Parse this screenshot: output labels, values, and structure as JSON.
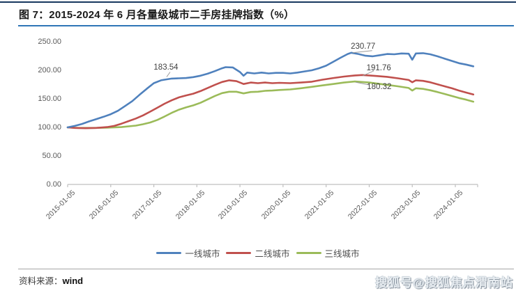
{
  "figure": {
    "title": "图 7：2015-2024 年 6 月各量级城市二手房挂牌指数（%）",
    "source_label": "资料来源：",
    "source_value": "wind",
    "watermark": "搜狐号@搜狐焦点渭南站"
  },
  "colors": {
    "top_rule": "#17375e",
    "title_rule": "#2e75b6",
    "axis": "#bfbfbf",
    "tick_text": "#595959",
    "data_label_text": "#404040",
    "leader_line": "#999999",
    "series_blue": "#4f81bd",
    "series_red": "#c0504d",
    "series_green": "#9bbb59",
    "source_rule": "#a6a6a6",
    "watermark_gray": "#8a97a2"
  },
  "chart_data": {
    "type": "line",
    "title": "2015-2024年6月各量级城市二手房挂牌指数（%）",
    "xlabel": "",
    "ylabel": "",
    "grid": false,
    "legend_position": "bottom",
    "x_axis": {
      "tick_labels": [
        "2015-01-05",
        "2016-01-05",
        "2017-01-05",
        "2018-01-05",
        "2019-01-05",
        "2020-01-05",
        "2021-01-05",
        "2022-01-05",
        "2023-01-05",
        "2024-01-05"
      ],
      "range_start": "2015-01",
      "range_end": "2024-06"
    },
    "y_axis": {
      "min": 0,
      "max": 250,
      "tick_values": [
        250,
        200,
        150,
        100,
        50,
        0
      ],
      "tick_labels": [
        "250.00",
        "200.00",
        "150.00",
        "100.00",
        "50.00",
        "0.00"
      ]
    },
    "series": [
      {
        "name": "一线城市",
        "color": "#4f81bd",
        "points": [
          [
            "2015-01",
            100
          ],
          [
            "2015-03",
            102.5
          ],
          [
            "2015-05",
            106
          ],
          [
            "2015-07",
            110.5
          ],
          [
            "2015-09",
            114.5
          ],
          [
            "2015-11",
            118.5
          ],
          [
            "2016-01",
            123
          ],
          [
            "2016-03",
            129
          ],
          [
            "2016-05",
            137.5
          ],
          [
            "2016-07",
            146
          ],
          [
            "2016-09",
            157
          ],
          [
            "2016-11",
            167.5
          ],
          [
            "2017-01",
            177.5
          ],
          [
            "2017-03",
            182.5
          ],
          [
            "2017-04",
            183.54
          ],
          [
            "2017-06",
            185.5
          ],
          [
            "2017-08",
            186
          ],
          [
            "2017-10",
            186.5
          ],
          [
            "2017-12",
            188
          ],
          [
            "2018-02",
            190.5
          ],
          [
            "2018-04",
            194
          ],
          [
            "2018-06",
            198.5
          ],
          [
            "2018-08",
            203.5
          ],
          [
            "2018-09",
            205.5
          ],
          [
            "2018-11",
            205
          ],
          [
            "2019-01",
            197
          ],
          [
            "2019-02",
            190.5
          ],
          [
            "2019-03",
            196
          ],
          [
            "2019-05",
            194.5
          ],
          [
            "2019-07",
            196
          ],
          [
            "2019-09",
            194.5
          ],
          [
            "2019-11",
            195.5
          ],
          [
            "2020-01",
            195.5
          ],
          [
            "2020-03",
            194.5
          ],
          [
            "2020-05",
            196
          ],
          [
            "2020-07",
            198
          ],
          [
            "2020-09",
            200
          ],
          [
            "2020-11",
            203.5
          ],
          [
            "2021-01",
            208
          ],
          [
            "2021-03",
            215
          ],
          [
            "2021-05",
            222
          ],
          [
            "2021-07",
            228.5
          ],
          [
            "2021-08",
            230.77
          ],
          [
            "2021-10",
            228.5
          ],
          [
            "2021-12",
            225.5
          ],
          [
            "2022-02",
            224.5
          ],
          [
            "2022-04",
            226.5
          ],
          [
            "2022-06",
            228.5
          ],
          [
            "2022-08",
            228
          ],
          [
            "2022-10",
            229.5
          ],
          [
            "2022-12",
            229
          ],
          [
            "2023-01",
            218.5
          ],
          [
            "2023-02",
            229.5
          ],
          [
            "2023-04",
            230
          ],
          [
            "2023-06",
            228
          ],
          [
            "2023-08",
            224.5
          ],
          [
            "2023-10",
            220.5
          ],
          [
            "2023-12",
            216.5
          ],
          [
            "2024-02",
            212.5
          ],
          [
            "2024-04",
            210
          ],
          [
            "2024-06",
            207
          ]
        ]
      },
      {
        "name": "二线城市",
        "color": "#c0504d",
        "points": [
          [
            "2015-01",
            100
          ],
          [
            "2015-03",
            99
          ],
          [
            "2015-06",
            98.5
          ],
          [
            "2015-09",
            99
          ],
          [
            "2015-12",
            100.5
          ],
          [
            "2016-02",
            102.5
          ],
          [
            "2016-04",
            106.5
          ],
          [
            "2016-06",
            111
          ],
          [
            "2016-08",
            115.5
          ],
          [
            "2016-10",
            121
          ],
          [
            "2016-12",
            127.5
          ],
          [
            "2017-02",
            134.5
          ],
          [
            "2017-04",
            141.5
          ],
          [
            "2017-06",
            147.5
          ],
          [
            "2017-08",
            152.5
          ],
          [
            "2017-10",
            156
          ],
          [
            "2017-12",
            159
          ],
          [
            "2018-02",
            163.5
          ],
          [
            "2018-04",
            169
          ],
          [
            "2018-06",
            174.5
          ],
          [
            "2018-08",
            179.5
          ],
          [
            "2018-10",
            182.5
          ],
          [
            "2018-12",
            181
          ],
          [
            "2019-01",
            178.5
          ],
          [
            "2019-02",
            176
          ],
          [
            "2019-04",
            178.5
          ],
          [
            "2019-06",
            177.5
          ],
          [
            "2019-08",
            178.5
          ],
          [
            "2019-10",
            177.5
          ],
          [
            "2019-12",
            178
          ],
          [
            "2020-03",
            177.5
          ],
          [
            "2020-06",
            178.5
          ],
          [
            "2020-09",
            180
          ],
          [
            "2020-12",
            183.5
          ],
          [
            "2021-03",
            186.5
          ],
          [
            "2021-06",
            189
          ],
          [
            "2021-09",
            191
          ],
          [
            "2021-11",
            191.76
          ],
          [
            "2022-01",
            191
          ],
          [
            "2022-03",
            190
          ],
          [
            "2022-06",
            188.5
          ],
          [
            "2022-09",
            186
          ],
          [
            "2022-12",
            183
          ],
          [
            "2023-01",
            179
          ],
          [
            "2023-02",
            182.5
          ],
          [
            "2023-04",
            181.5
          ],
          [
            "2023-06",
            179
          ],
          [
            "2023-08",
            175.5
          ],
          [
            "2023-10",
            172
          ],
          [
            "2023-12",
            168.5
          ],
          [
            "2024-02",
            164.5
          ],
          [
            "2024-04",
            161
          ],
          [
            "2024-06",
            157.5
          ]
        ]
      },
      {
        "name": "三线城市",
        "color": "#9bbb59",
        "points": [
          [
            "2015-01",
            100
          ],
          [
            "2015-04",
            99
          ],
          [
            "2015-08",
            99
          ],
          [
            "2015-12",
            99.5
          ],
          [
            "2016-04",
            100.5
          ],
          [
            "2016-08",
            103
          ],
          [
            "2016-10",
            105.5
          ],
          [
            "2016-12",
            108.5
          ],
          [
            "2017-02",
            113
          ],
          [
            "2017-04",
            119
          ],
          [
            "2017-06",
            125.5
          ],
          [
            "2017-08",
            131
          ],
          [
            "2017-10",
            135
          ],
          [
            "2017-12",
            138.5
          ],
          [
            "2018-02",
            143
          ],
          [
            "2018-04",
            149
          ],
          [
            "2018-06",
            155
          ],
          [
            "2018-08",
            160
          ],
          [
            "2018-10",
            162.5
          ],
          [
            "2018-12",
            162.5
          ],
          [
            "2019-02",
            159.5
          ],
          [
            "2019-04",
            162
          ],
          [
            "2019-06",
            162.5
          ],
          [
            "2019-08",
            164
          ],
          [
            "2019-10",
            164.5
          ],
          [
            "2019-12",
            165.5
          ],
          [
            "2020-03",
            166.5
          ],
          [
            "2020-06",
            168.5
          ],
          [
            "2020-09",
            171
          ],
          [
            "2020-12",
            173.5
          ],
          [
            "2021-03",
            176
          ],
          [
            "2021-06",
            178.5
          ],
          [
            "2021-09",
            180.32
          ],
          [
            "2021-11",
            179.5
          ],
          [
            "2022-01",
            178.5
          ],
          [
            "2022-03",
            177
          ],
          [
            "2022-06",
            174.5
          ],
          [
            "2022-09",
            172
          ],
          [
            "2022-12",
            169
          ],
          [
            "2023-01",
            164.5
          ],
          [
            "2023-02",
            168.5
          ],
          [
            "2023-04",
            167.5
          ],
          [
            "2023-06",
            165
          ],
          [
            "2023-08",
            162
          ],
          [
            "2023-10",
            158.5
          ],
          [
            "2023-12",
            155
          ],
          [
            "2024-02",
            151.5
          ],
          [
            "2024-04",
            148.5
          ],
          [
            "2024-06",
            145
          ]
        ]
      }
    ],
    "annotations": [
      {
        "series": "一线城市",
        "x": "2017-04",
        "y": 183.54,
        "text": "183.54"
      },
      {
        "series": "一线城市",
        "x": "2021-08",
        "y": 230.77,
        "text": "230.77"
      },
      {
        "series": "二线城市",
        "x": "2021-11",
        "y": 191.76,
        "text": "191.76"
      },
      {
        "series": "三线城市",
        "x": "2021-09",
        "y": 180.32,
        "text": "180.32"
      }
    ]
  }
}
